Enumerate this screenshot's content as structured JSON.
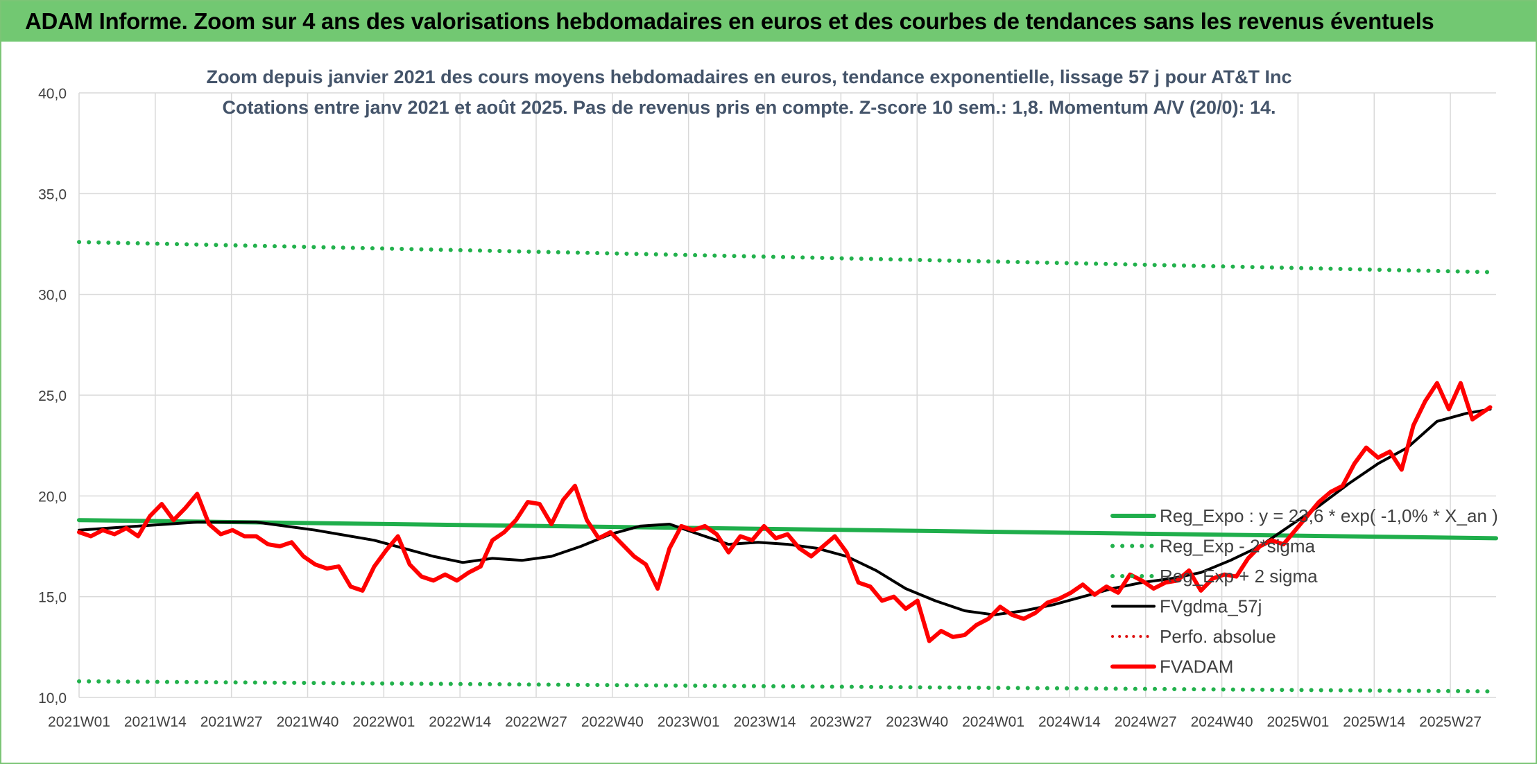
{
  "header": {
    "title": "ADAM Informe. Zoom sur 4 ans des valorisations hebdomadaires en euros et des courbes de tendances sans les revenus éventuels"
  },
  "chart_data": {
    "type": "line",
    "title_line1": "Zoom depuis janvier 2021 des cours moyens hebdomadaires en euros, tendance exponentielle, lissage 57 j pour AT&T Inc",
    "title_line2": "Cotations entre janv 2021 et août 2025. Pas de revenus pris en compte. Z-score 10 sem.: 1,8. Momentum A/V (20/0): 14.",
    "ylim": [
      10,
      40
    ],
    "yticks": [
      "10,0",
      "15,0",
      "20,0",
      "25,0",
      "30,0",
      "35,0",
      "40,0"
    ],
    "x_categories": [
      "2021W01",
      "2021W14",
      "2021W27",
      "2021W40",
      "2022W01",
      "2022W14",
      "2022W27",
      "2022W40",
      "2023W01",
      "2023W14",
      "2023W27",
      "2023W40",
      "2024W01",
      "2024W14",
      "2024W27",
      "2024W40",
      "2025W01",
      "2025W14",
      "2025W27"
    ],
    "grid": true,
    "legend_position": "right",
    "colors": {
      "reg_expo": "#1fae4b",
      "sigma": "#22b14c",
      "fvgdma": "#000000",
      "perfo": "#dd1111",
      "fvadam": "#ff0000"
    },
    "series": [
      {
        "name": "Reg_Expo : y = 23,6 * exp( -1,0% *  X_an )",
        "style": "solid-green",
        "x_index": [
          0,
          240
        ],
        "values": [
          18.8,
          17.9
        ]
      },
      {
        "name": "Reg_Exp - 2*sigma",
        "style": "dotted-green",
        "x_index": [
          0,
          240
        ],
        "values": [
          10.8,
          10.3
        ]
      },
      {
        "name": "Reg_Exp + 2 sigma",
        "style": "dotted-green",
        "x_index": [
          0,
          240
        ],
        "values": [
          32.6,
          31.1
        ]
      },
      {
        "name": "FVgdma_57j",
        "style": "solid-black",
        "x_index": [
          0,
          10,
          20,
          30,
          40,
          50,
          55,
          60,
          65,
          70,
          75,
          80,
          85,
          90,
          95,
          100,
          105,
          110,
          115,
          120,
          125,
          130,
          135,
          140,
          145,
          150,
          155,
          160,
          165,
          170,
          175,
          180,
          185,
          190,
          195,
          200,
          205,
          210,
          215,
          220,
          225,
          230,
          235,
          239
        ],
        "values": [
          18.3,
          18.5,
          18.7,
          18.7,
          18.3,
          17.8,
          17.4,
          17.0,
          16.7,
          16.9,
          16.8,
          17.0,
          17.5,
          18.1,
          18.5,
          18.6,
          18.1,
          17.6,
          17.7,
          17.6,
          17.4,
          17.0,
          16.3,
          15.4,
          14.8,
          14.3,
          14.1,
          14.3,
          14.6,
          15.0,
          15.4,
          15.7,
          15.9,
          16.2,
          16.8,
          17.5,
          18.5,
          19.5,
          20.6,
          21.6,
          22.4,
          23.7,
          24.1,
          24.3
        ]
      },
      {
        "name": "Perfo. absolue",
        "style": "dotted-red",
        "x_index": [],
        "values": []
      },
      {
        "name": "FVADAM",
        "style": "thick-red",
        "x_index": [
          0,
          2,
          4,
          6,
          8,
          10,
          12,
          14,
          16,
          18,
          20,
          22,
          24,
          26,
          28,
          30,
          32,
          34,
          36,
          38,
          40,
          42,
          44,
          46,
          48,
          50,
          52,
          54,
          56,
          58,
          60,
          62,
          64,
          66,
          68,
          70,
          72,
          74,
          76,
          78,
          80,
          82,
          84,
          86,
          88,
          90,
          92,
          94,
          96,
          98,
          100,
          102,
          104,
          106,
          108,
          110,
          112,
          114,
          116,
          118,
          120,
          122,
          124,
          126,
          128,
          130,
          132,
          134,
          136,
          138,
          140,
          142,
          144,
          146,
          148,
          150,
          152,
          154,
          156,
          158,
          160,
          162,
          164,
          166,
          168,
          170,
          172,
          174,
          176,
          178,
          180,
          182,
          184,
          186,
          188,
          190,
          192,
          194,
          196,
          198,
          200,
          202,
          204,
          206,
          208,
          210,
          212,
          214,
          216,
          218,
          220,
          222,
          224,
          226,
          228,
          230,
          232,
          234,
          236,
          238,
          239
        ],
        "values": [
          18.2,
          18.0,
          18.3,
          18.1,
          18.4,
          18.0,
          19.0,
          19.6,
          18.8,
          19.4,
          20.1,
          18.6,
          18.1,
          18.3,
          18.0,
          18.0,
          17.6,
          17.5,
          17.7,
          17.0,
          16.6,
          16.4,
          16.5,
          15.5,
          15.3,
          16.5,
          17.3,
          18.0,
          16.6,
          16.0,
          15.8,
          16.1,
          15.8,
          16.2,
          16.5,
          17.8,
          18.2,
          18.8,
          19.7,
          19.6,
          18.6,
          19.8,
          20.5,
          18.8,
          17.9,
          18.2,
          17.6,
          17.0,
          16.6,
          15.4,
          17.4,
          18.5,
          18.3,
          18.5,
          18.1,
          17.2,
          18.0,
          17.8,
          18.5,
          17.9,
          18.1,
          17.4,
          17.0,
          17.5,
          18.0,
          17.2,
          15.7,
          15.5,
          14.8,
          15.0,
          14.4,
          14.8,
          12.8,
          13.3,
          13.0,
          13.1,
          13.6,
          13.9,
          14.5,
          14.1,
          13.9,
          14.2,
          14.7,
          14.9,
          15.2,
          15.6,
          15.1,
          15.5,
          15.2,
          16.1,
          15.8,
          15.4,
          15.7,
          15.8,
          16.3,
          15.3,
          15.9,
          16.1,
          16.0,
          16.9,
          17.5,
          17.8,
          17.6,
          18.3,
          19.0,
          19.7,
          20.2,
          20.5,
          21.6,
          22.4,
          21.9,
          22.2,
          21.3,
          23.5,
          24.7,
          25.6,
          24.3,
          25.6,
          23.8,
          24.2,
          24.4
        ]
      }
    ]
  }
}
